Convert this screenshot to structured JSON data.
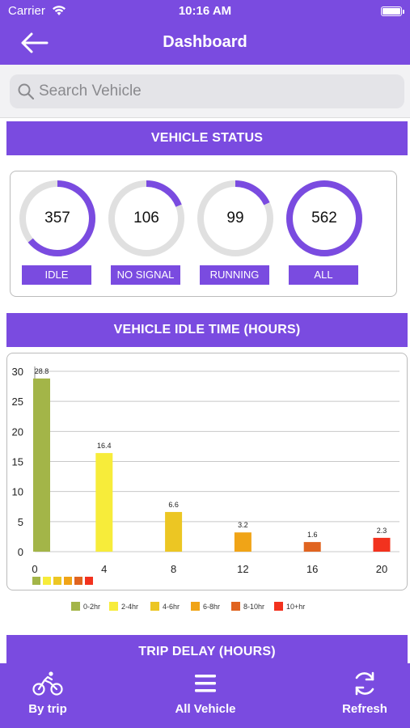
{
  "status_bar": {
    "carrier": "Carrier",
    "time": "10:16 AM"
  },
  "nav": {
    "title": "Dashboard"
  },
  "search": {
    "placeholder": "Search Vehicle",
    "value": ""
  },
  "vehicle_status": {
    "header": "VEHICLE STATUS",
    "items": [
      {
        "value": "357",
        "label": "IDLE",
        "fraction": 0.64
      },
      {
        "value": "106",
        "label": "NO SIGNAL",
        "fraction": 0.19
      },
      {
        "value": "99",
        "label": "RUNNING",
        "fraction": 0.18
      },
      {
        "value": "562",
        "label": "ALL",
        "fraction": 1.0
      }
    ],
    "ring_color": "#7A4BE0",
    "track_color": "#E0E0E0"
  },
  "idle_time": {
    "header": "VEHICLE IDLE TIME (HOURS)"
  },
  "chart_data": {
    "type": "bar",
    "x": [
      0,
      4,
      8,
      12,
      16,
      20
    ],
    "values": [
      28.8,
      16.4,
      6.6,
      3.2,
      1.6,
      2.3
    ],
    "value_labels": [
      "28.8",
      "16.4",
      "6.6",
      "3.2",
      "1.6",
      "2.3"
    ],
    "colors": [
      "#A3B548",
      "#F7EC3A",
      "#ECC623",
      "#F0A417",
      "#E06420",
      "#F2321E"
    ],
    "ylim": [
      0,
      30
    ],
    "yticks": [
      "0",
      "5",
      "10",
      "15",
      "20",
      "25",
      "30"
    ],
    "xticks": [
      "0",
      "4",
      "8",
      "12",
      "16",
      "20"
    ],
    "legend": [
      "0-2hr",
      "2-4hr",
      "4-6hr",
      "6-8hr",
      "8-10hr",
      "10+hr"
    ],
    "grid": true,
    "legend_position": "bottom"
  },
  "trip_delay": {
    "header": "TRIP DELAY (HOURS)"
  },
  "tabs": [
    {
      "label": "By trip",
      "icon": "bicycle-icon"
    },
    {
      "label": "All Vehicle",
      "icon": "menu-icon"
    },
    {
      "label": "Refresh",
      "icon": "refresh-icon"
    }
  ]
}
